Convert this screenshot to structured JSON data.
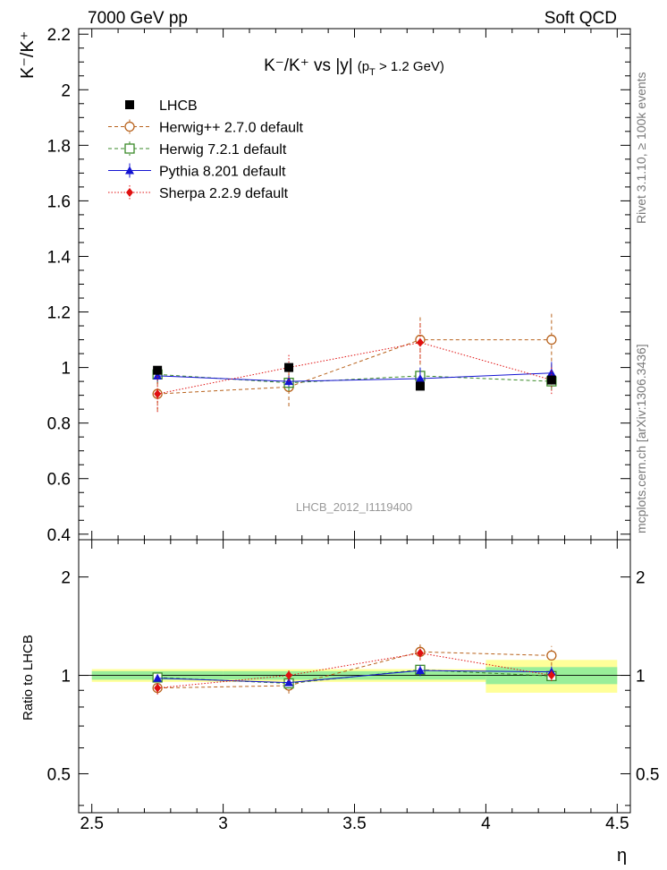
{
  "header": {
    "left": "7000 GeV pp",
    "right": "Soft QCD"
  },
  "side_labels": {
    "rivet": "Rivet 3.1.10,  ≥ 100k events",
    "mcplots": "mcplots.cern.ch [arXiv:1306.3436]"
  },
  "chart_data": {
    "type": "scatter",
    "title": "K⁻/K⁺ vs |y| (p_T > 1.2 GeV)",
    "title_parts": {
      "main": "K⁻/K⁺ vs |y|",
      "cut": "(p",
      "cut_sub": "T",
      "cut_tail": " > 1.2 GeV)"
    },
    "ylabel": "K⁻/K⁺",
    "ratio_ylabel": "Ratio to LHCB",
    "xlabel": "η",
    "watermark": "LHCB_2012_I1119400",
    "xlim": [
      2.45,
      4.55
    ],
    "ylim": [
      0.38,
      2.22
    ],
    "ratio_ylim": [
      0.38,
      2.6
    ],
    "ratio_scale": "log",
    "x_ticks": [
      "2.5",
      "3",
      "3.5",
      "4",
      "4.5"
    ],
    "y_ticks": [
      "0.4",
      "0.6",
      "0.8",
      "1",
      "1.2",
      "1.4",
      "1.6",
      "1.8",
      "2",
      "2.2"
    ],
    "ratio_ticks": [
      "0.5",
      "1",
      "2"
    ],
    "legend_position": "top-left",
    "x": [
      2.75,
      3.25,
      3.75,
      4.25
    ],
    "x_bins": [
      [
        2.5,
        3.0
      ],
      [
        3.0,
        3.5
      ],
      [
        3.5,
        4.0
      ],
      [
        4.0,
        4.5
      ]
    ],
    "data": {
      "name": "LHCB",
      "values": [
        0.99,
        1.0,
        0.933,
        0.955
      ],
      "ratio_band_stat": [
        0.03,
        0.03,
        0.03,
        0.06
      ],
      "ratio_band_total": [
        0.045,
        0.045,
        0.045,
        0.115
      ]
    },
    "series": [
      {
        "name": "Herwig++ 2.7.0 default",
        "color": "#b8621c",
        "marker": "open-circle",
        "line": "dashed",
        "values": [
          0.905,
          0.93,
          1.1,
          1.1
        ],
        "errors": [
          0.06,
          0.07,
          0.09,
          0.1
        ],
        "ratio": [
          0.915,
          0.93,
          1.18,
          1.15
        ],
        "ratio_errors": [
          0.04,
          0.05,
          0.07,
          0.08
        ]
      },
      {
        "name": "Herwig 7.2.1 default",
        "color": "#3a8a28",
        "marker": "open-square",
        "line": "dashed",
        "values": [
          0.975,
          0.945,
          0.97,
          0.95
        ],
        "errors": [
          0.03,
          0.03,
          0.03,
          0.03
        ],
        "ratio": [
          0.985,
          0.945,
          1.04,
          0.995
        ],
        "ratio_errors": [
          0.03,
          0.03,
          0.03,
          0.03
        ]
      },
      {
        "name": "Pythia 8.201 default",
        "color": "#1414d2",
        "marker": "filled-triangle",
        "line": "solid",
        "values": [
          0.97,
          0.95,
          0.96,
          0.98
        ],
        "errors": [
          0.02,
          0.02,
          0.04,
          0.04
        ],
        "ratio": [
          0.98,
          0.95,
          1.035,
          1.025
        ],
        "ratio_errors": [
          0.02,
          0.02,
          0.04,
          0.04
        ]
      },
      {
        "name": "Sherpa 2.2.9 default",
        "color": "#e01010",
        "marker": "filled-diamond",
        "line": "dotted",
        "values": [
          0.905,
          1.0,
          1.09,
          0.955
        ],
        "errors": [
          0.065,
          0.05,
          0.07,
          0.05
        ],
        "ratio": [
          0.915,
          1.0,
          1.17,
          1.0
        ],
        "ratio_errors": [
          0.04,
          0.04,
          0.05,
          0.04
        ]
      }
    ],
    "colors": {
      "band_total": "#ffff99",
      "band_stat": "#99ee99"
    }
  }
}
